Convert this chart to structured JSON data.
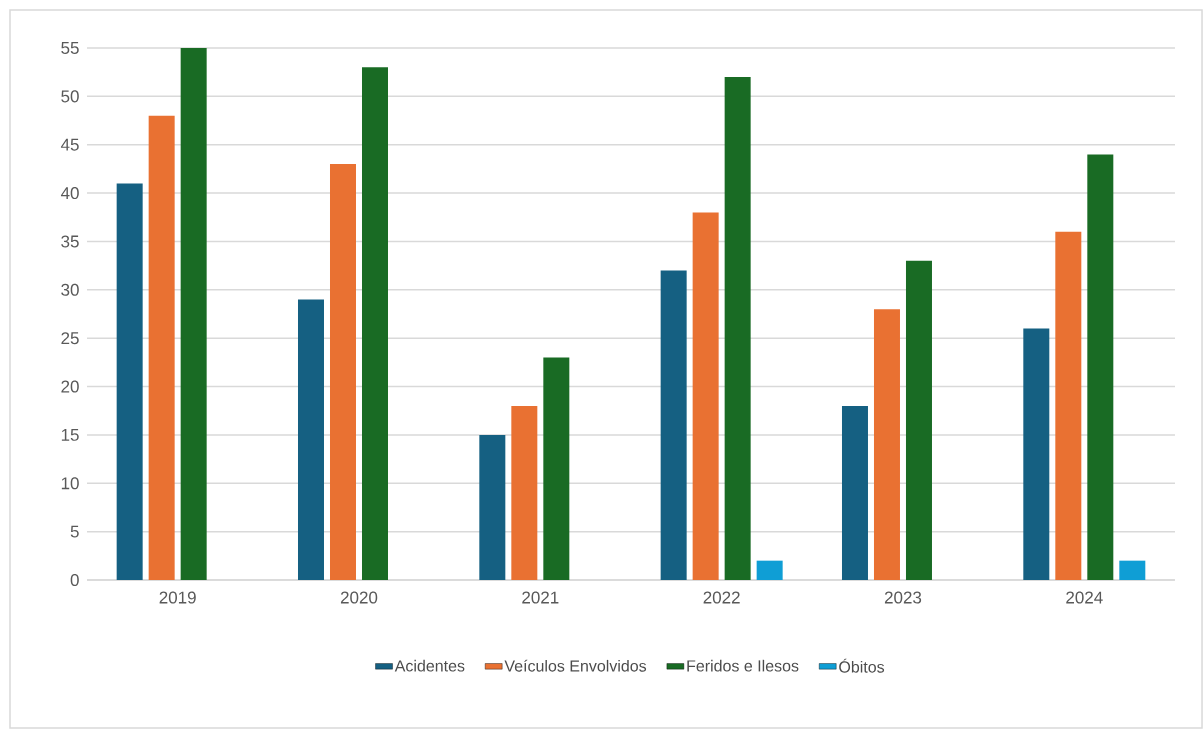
{
  "chart_data": {
    "type": "bar",
    "categories": [
      "2019",
      "2020",
      "2021",
      "2022",
      "2023",
      "2024"
    ],
    "series": [
      {
        "name": "Acidentes",
        "color": "#156082",
        "values": [
          41,
          29,
          15,
          32,
          18,
          26
        ]
      },
      {
        "name": "Veículos Envolvidos",
        "color": "#e97132",
        "values": [
          48,
          43,
          18,
          38,
          28,
          36
        ]
      },
      {
        "name": "Feridos e Ilesos",
        "color": "#196b24",
        "values": [
          55,
          53,
          23,
          52,
          33,
          44
        ]
      },
      {
        "name": "Óbitos",
        "color": "#0f9ed5",
        "values": [
          null,
          null,
          null,
          2,
          null,
          2
        ]
      }
    ],
    "ylim": [
      0,
      55
    ],
    "yticks": [
      0,
      5,
      10,
      15,
      20,
      25,
      30,
      35,
      40,
      45,
      50,
      55
    ],
    "grid": "y",
    "legend": "bottom"
  }
}
